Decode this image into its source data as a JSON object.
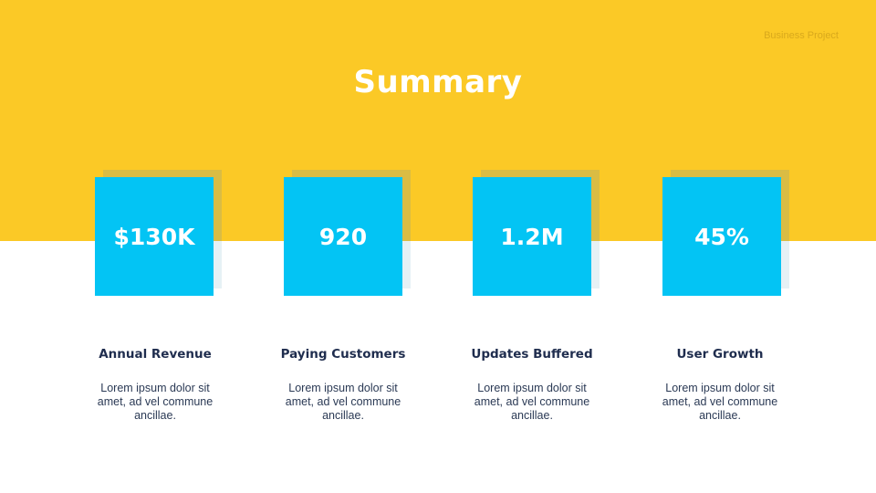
{
  "header": {
    "project_label": "Business Project",
    "title": "Summary"
  },
  "colors": {
    "band": "#fbc926",
    "card": "#03c4f4",
    "heading_text": "#1f2d4e",
    "background": "#ffffff"
  },
  "metrics": [
    {
      "value": "$130K",
      "heading": "Annual Revenue",
      "description": "Lorem ipsum dolor sit amet, ad vel commune ancillae."
    },
    {
      "value": "920",
      "heading": "Paying Customers",
      "description": "Lorem ipsum dolor sit amet, ad vel commune ancillae."
    },
    {
      "value": "1.2M",
      "heading": "Updates Buffered",
      "description": "Lorem ipsum dolor sit amet, ad vel commune ancillae."
    },
    {
      "value": "45%",
      "heading": "User Growth",
      "description": "Lorem ipsum dolor sit amet, ad vel commune ancillae."
    }
  ]
}
